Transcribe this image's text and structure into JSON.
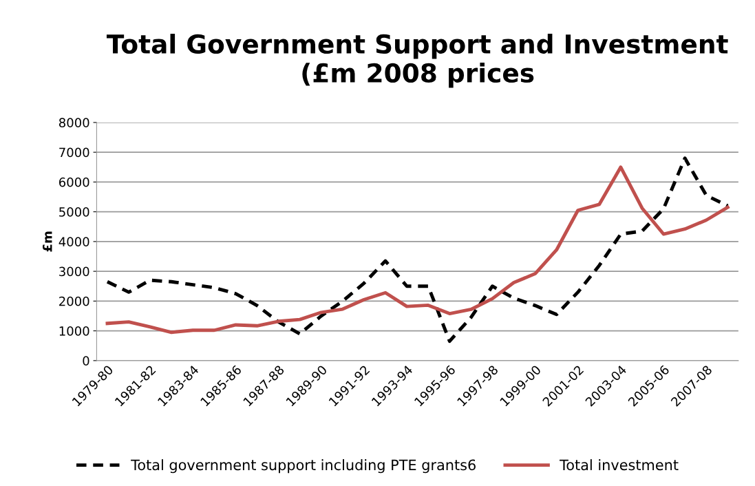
{
  "chart_data": {
    "type": "line",
    "title": "Total Government Support and Investment\n(£m 2008 prices",
    "ylabel": "£m",
    "categories": [
      "1979-80",
      null,
      "1981-82",
      null,
      "1983-84",
      null,
      "1985-86",
      null,
      "1987-88",
      null,
      "1989-90",
      null,
      "1991-92",
      null,
      "1993-94",
      null,
      "1995-96",
      null,
      "1997-98",
      null,
      "1999-00",
      null,
      "2001-02",
      null,
      "2003-04",
      null,
      "2005-06",
      null,
      "2007-08",
      null
    ],
    "series": [
      {
        "name": "Total government support including PTE grants6",
        "color": "#000000",
        "line_style": "dashed",
        "values": [
          2650,
          2300,
          2700,
          2650,
          2550,
          2450,
          2250,
          1850,
          1300,
          900,
          1500,
          2000,
          2600,
          3350,
          2500,
          2500,
          650,
          1450,
          2500,
          2100,
          1850,
          1550,
          2300,
          3200,
          4250,
          4350,
          5100,
          6800,
          5550,
          5200
        ]
      },
      {
        "name": "Total investment",
        "color": "#c0504d",
        "line_style": "solid",
        "values": [
          1250,
          1300,
          1130,
          950,
          1020,
          1020,
          1200,
          1170,
          1320,
          1380,
          1620,
          1730,
          2050,
          2280,
          1820,
          1860,
          1580,
          1720,
          2080,
          2620,
          2920,
          3720,
          5050,
          5250,
          6500,
          5120,
          4250,
          4420,
          4720,
          5150
        ]
      }
    ],
    "ylim": [
      0,
      8000
    ],
    "yticks": [
      0,
      1000,
      2000,
      3000,
      4000,
      5000,
      6000,
      7000,
      8000
    ],
    "grid": "y",
    "legend": "bottom"
  }
}
